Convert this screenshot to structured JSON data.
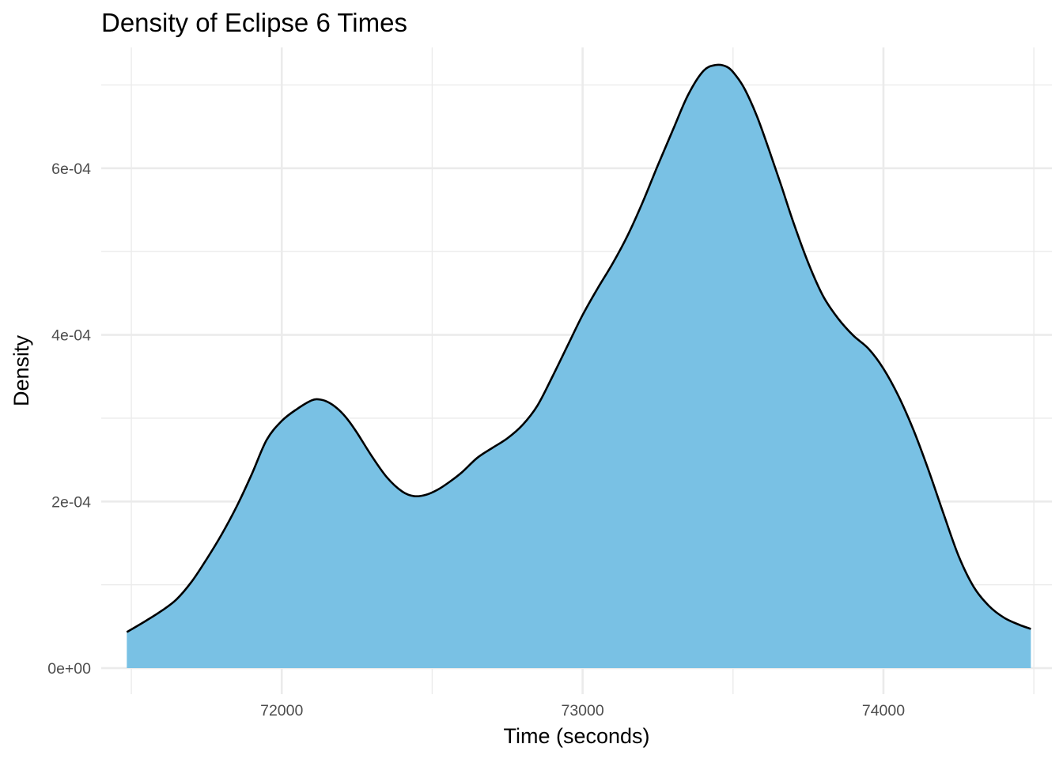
{
  "chart_data": {
    "type": "area",
    "title": "Density of Eclipse 6 Times",
    "xlabel": "Time (seconds)",
    "ylabel": "Density",
    "xlim": [
      71400,
      74560
    ],
    "ylim": [
      -3.13e-05,
      0.000745
    ],
    "x_ticks": [
      72000,
      73000,
      74000
    ],
    "x_tick_labels": [
      "72000",
      "73000",
      "74000"
    ],
    "x_minor_ticks": [
      71500,
      72500,
      73500,
      74500
    ],
    "y_ticks": [
      0,
      0.0002,
      0.0004,
      0.0006
    ],
    "y_tick_labels": [
      "0e+00",
      "2e-04",
      "4e-04",
      "6e-04"
    ],
    "y_minor_ticks": [
      0.0001,
      0.0003,
      0.0005,
      0.0007
    ],
    "grid": true,
    "legend": "none",
    "fill_color": "#79c1e4",
    "line_color": "#000000",
    "series": [
      {
        "x": [
          71485,
          71550,
          71600,
          71650,
          71700,
          71750,
          71800,
          71850,
          71900,
          71950,
          72000,
          72050,
          72100,
          72130,
          72160,
          72190,
          72220,
          72250,
          72300,
          72350,
          72400,
          72440,
          72480,
          72520,
          72560,
          72600,
          72650,
          72700,
          72750,
          72800,
          72850,
          72900,
          72950,
          73000,
          73050,
          73100,
          73150,
          73200,
          73250,
          73300,
          73350,
          73400,
          73440,
          73480,
          73510,
          73540,
          73580,
          73620,
          73660,
          73700,
          73750,
          73800,
          73850,
          73900,
          73950,
          74000,
          74050,
          74100,
          74150,
          74200,
          74250,
          74300,
          74350,
          74400,
          74450,
          74490
        ],
        "y": [
          4.32e-05,
          5.71e-05,
          6.86e-05,
          8.24e-05,
          0.0001035,
          0.0001306,
          0.0001603,
          0.0001939,
          0.0002325,
          0.000274,
          0.0002967,
          0.0003108,
          0.0003214,
          0.0003222,
          0.0003181,
          0.0003099,
          0.000298,
          0.0002826,
          0.000254,
          0.0002288,
          0.0002121,
          0.0002064,
          0.0002081,
          0.0002145,
          0.0002241,
          0.0002354,
          0.0002524,
          0.0002643,
          0.0002758,
          0.0002917,
          0.0003152,
          0.0003501,
          0.000387,
          0.0004238,
          0.0004558,
          0.0004858,
          0.0005196,
          0.0005595,
          0.0006035,
          0.0006459,
          0.0006876,
          0.0007162,
          0.0007238,
          0.0007217,
          0.000711,
          0.0006942,
          0.000662,
          0.0006218,
          0.0005795,
          0.0005357,
          0.0004864,
          0.0004462,
          0.0004193,
          0.0003991,
          0.0003835,
          0.0003594,
          0.0003265,
          0.0002857,
          0.0002375,
          0.000185,
          0.0001344,
          9.75e-05,
          7.49e-05,
          6.07e-05,
          5.22e-05,
          4.7e-05
        ]
      }
    ]
  }
}
